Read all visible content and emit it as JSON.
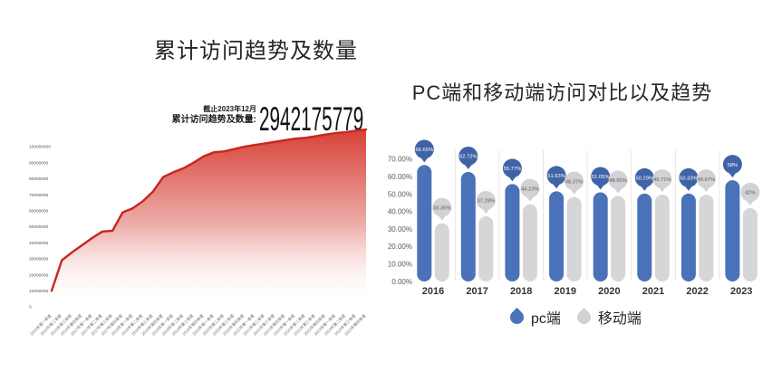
{
  "page": {
    "background": "#ffffff"
  },
  "chart_data": [
    {
      "type": "area",
      "title": "累计访问趋势及数量",
      "annotation": {
        "date_note": "截止2023年12月",
        "label": "累计访问趋势及数量:",
        "value": "2942175779"
      },
      "x": [
        "2016年第一季度",
        "2016年第二季度",
        "2016年第三季度",
        "2016年第四季度",
        "2017年第一季度",
        "2017年第二季度",
        "2017年第三季度",
        "2017年第四季度",
        "2018年第一季度",
        "2018年第二季度",
        "2018年第三季度",
        "2018年第四季度",
        "2019年第一季度",
        "2019年第二季度",
        "2019年第三季度",
        "2019年第四季度",
        "2020年第一季度",
        "2020年第二季度",
        "2020年第三季度",
        "2020年第四季度",
        "2021年第一季度",
        "2021年第二季度",
        "2021年第三季度",
        "2021年第四季度",
        "2022年第一季度",
        "2022年第二季度",
        "2022年第三季度",
        "2022年第四季度",
        "2023年第一季度",
        "2023年第二季度",
        "2023年第三季度",
        "2023年第四季度"
      ],
      "values": [
        10000000,
        29000000,
        34000000,
        38500000,
        43000000,
        47000000,
        47500000,
        59000000,
        61500000,
        66000000,
        72000000,
        81000000,
        84000000,
        86500000,
        90000000,
        94000000,
        96500000,
        97000000,
        98500000,
        100000000,
        101000000,
        102000000,
        103000000,
        104000000,
        105000000,
        105500000,
        106500000,
        107500000,
        108500000,
        109000000,
        110000000,
        110700000
      ],
      "yticks": [
        0,
        10000000,
        20000000,
        30000000,
        40000000,
        50000000,
        60000000,
        70000000,
        80000000,
        90000000,
        100000000
      ],
      "ylim": [
        0,
        100000000
      ],
      "xlabel": "",
      "ylabel": "",
      "grid": false,
      "legend_position": "none",
      "line_color": "#c8251c",
      "fill_color_top": "#d5392f"
    },
    {
      "type": "bar",
      "title": "PC端和移动端访问对比以及趋势",
      "categories": [
        "2016",
        "2017",
        "2018",
        "2019",
        "2020",
        "2021",
        "2022",
        "2023"
      ],
      "series": [
        {
          "name": "pc端",
          "color": "#4a72b8",
          "badge_color": "#3f63a7",
          "label_color": "#ffffff",
          "values": [
            66.65,
            62.72,
            55.77,
            51.63,
            51.05,
            50.29,
            50.33,
            58
          ],
          "labels": [
            "66.65%",
            "62.72%",
            "55.77%",
            "51.63%",
            "51.05%",
            "50.29%",
            "50.33%",
            "58%"
          ]
        },
        {
          "name": "移动端",
          "color": "#d6d6d8",
          "badge_color": "#d2d2d4",
          "label_color": "#595959",
          "values": [
            33.35,
            37.28,
            44.23,
            48.37,
            48.95,
            49.71,
            49.67,
            42
          ],
          "labels": [
            "33.35%",
            "37.28%",
            "44.23%",
            "48.37%",
            "48.95%",
            "49.71%",
            "49.67%",
            "42%"
          ]
        }
      ],
      "yticks": [
        "0.00%",
        "10.00%",
        "20.00%",
        "30.00%",
        "40.00%",
        "50.00%",
        "60.00%",
        "70.00%"
      ],
      "ylim": [
        0,
        70
      ],
      "grid": false,
      "legend_position": "bottom"
    }
  ]
}
